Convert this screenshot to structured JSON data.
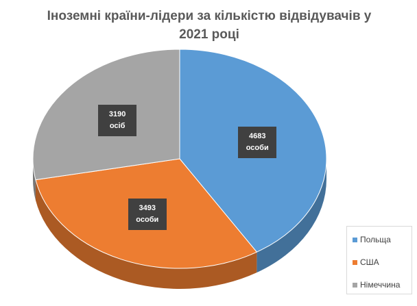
{
  "chart_data": {
    "type": "pie",
    "title": "Іноземні країни-лідери за кількістю відвідувачів у 2021 році",
    "categories": [
      "Польща",
      "США",
      "Німеччина"
    ],
    "values": [
      4683,
      3493,
      3190
    ],
    "value_labels": [
      "4683 особи",
      "3493 особи",
      "3190 осіб"
    ],
    "colors": [
      "#5b9bd5",
      "#ed7d31",
      "#a5a5a5"
    ],
    "legend": "bottom-right"
  }
}
